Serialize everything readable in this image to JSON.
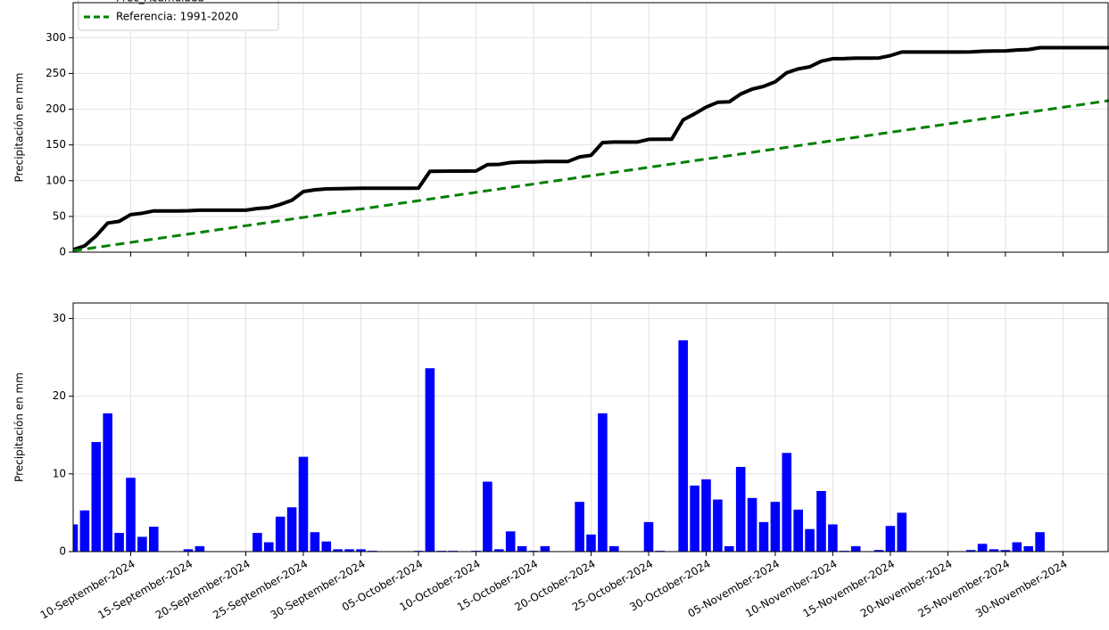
{
  "chart_data": [
    {
      "type": "line",
      "ylabel": "Precipitación en mm",
      "grid": true,
      "legend": "upper left",
      "xlim": [
        "2024-09-05",
        "2024-12-04"
      ],
      "ylim": [
        0,
        349
      ],
      "yticks": [
        0,
        50,
        100,
        150,
        200,
        250,
        300
      ],
      "xticks": [
        "2024-09-10",
        "2024-09-15",
        "2024-09-20",
        "2024-09-25",
        "2024-09-30",
        "2024-10-05",
        "2024-10-10",
        "2024-10-15",
        "2024-10-20",
        "2024-10-25",
        "2024-10-30",
        "2024-11-05",
        "2024-11-10",
        "2024-11-15",
        "2024-11-20",
        "2024-11-25",
        "2024-11-30"
      ],
      "series": [
        {
          "name": "Prec_Acumulada",
          "color": "#000000",
          "dash": false,
          "x": [
            "2024-09-05",
            "2024-09-06",
            "2024-09-07",
            "2024-09-08",
            "2024-09-09",
            "2024-09-10",
            "2024-09-11",
            "2024-09-12",
            "2024-09-13",
            "2024-09-14",
            "2024-09-15",
            "2024-09-16",
            "2024-09-17",
            "2024-09-18",
            "2024-09-19",
            "2024-09-20",
            "2024-09-21",
            "2024-09-22",
            "2024-09-23",
            "2024-09-24",
            "2024-09-25",
            "2024-09-26",
            "2024-09-27",
            "2024-09-28",
            "2024-09-29",
            "2024-09-30",
            "2024-10-01",
            "2024-10-02",
            "2024-10-03",
            "2024-10-04",
            "2024-10-05",
            "2024-10-06",
            "2024-10-07",
            "2024-10-08",
            "2024-10-09",
            "2024-10-10",
            "2024-10-11",
            "2024-10-12",
            "2024-10-13",
            "2024-10-14",
            "2024-10-15",
            "2024-10-16",
            "2024-10-17",
            "2024-10-18",
            "2024-10-19",
            "2024-10-20",
            "2024-10-21",
            "2024-10-22",
            "2024-10-23",
            "2024-10-24",
            "2024-10-25",
            "2024-10-26",
            "2024-10-27",
            "2024-10-28",
            "2024-10-29",
            "2024-10-30",
            "2024-10-31",
            "2024-11-01",
            "2024-11-02",
            "2024-11-03",
            "2024-11-04",
            "2024-11-05",
            "2024-11-06",
            "2024-11-07",
            "2024-11-08",
            "2024-11-09",
            "2024-11-10",
            "2024-11-11",
            "2024-11-12",
            "2024-11-13",
            "2024-11-14",
            "2024-11-15",
            "2024-11-16",
            "2024-11-17",
            "2024-11-18",
            "2024-11-19",
            "2024-11-20",
            "2024-11-21",
            "2024-11-22",
            "2024-11-23",
            "2024-11-24",
            "2024-11-25",
            "2024-11-26",
            "2024-11-27",
            "2024-11-28",
            "2024-11-29",
            "2024-11-30",
            "2024-12-01",
            "2024-12-02",
            "2024-12-03",
            "2024-12-04"
          ],
          "values": [
            3.5,
            8.8,
            22.9,
            40.7,
            43.1,
            52.6,
            54.5,
            57.7,
            57.7,
            57.7,
            58.0,
            58.7,
            58.7,
            58.7,
            58.7,
            58.7,
            61.1,
            62.3,
            66.8,
            72.5,
            84.7,
            87.2,
            88.5,
            88.8,
            89.1,
            89.4,
            89.5,
            89.5,
            89.5,
            89.5,
            89.6,
            113.2,
            113.3,
            113.4,
            113.4,
            113.5,
            122.5,
            122.8,
            125.4,
            126.1,
            126.2,
            126.9,
            126.9,
            126.9,
            133.3,
            135.5,
            153.3,
            154.0,
            154.0,
            154.0,
            157.8,
            157.9,
            157.9,
            185.1,
            193.6,
            202.9,
            209.6,
            210.3,
            221.2,
            228.1,
            231.9,
            238.3,
            251.0,
            256.4,
            259.3,
            267.1,
            270.6,
            270.7,
            271.4,
            271.4,
            271.6,
            274.9,
            279.9,
            279.9,
            279.9,
            279.9,
            279.9,
            279.9,
            280.1,
            281.1,
            281.4,
            281.6,
            282.8,
            283.5,
            286.0,
            286.0,
            286.0,
            286.0,
            286.0,
            286.0,
            286.0
          ]
        },
        {
          "name": "Referencia: 1991-2020",
          "color": "#008000",
          "dash": true,
          "x": [
            "2024-09-05",
            "2024-12-04"
          ],
          "values": [
            2,
            212
          ]
        }
      ]
    },
    {
      "type": "bar",
      "ylabel": "Precipitación en mm",
      "grid": true,
      "color": "#0000ff",
      "xlim": [
        "2024-09-05",
        "2024-12-04"
      ],
      "ylim": [
        0,
        32
      ],
      "yticks": [
        0,
        10,
        20,
        30
      ],
      "xticks": [
        {
          "value": "2024-09-10",
          "label": "10-September-2024"
        },
        {
          "value": "2024-09-15",
          "label": "15-September-2024"
        },
        {
          "value": "2024-09-20",
          "label": "20-September-2024"
        },
        {
          "value": "2024-09-25",
          "label": "25-September-2024"
        },
        {
          "value": "2024-09-30",
          "label": "30-September-2024"
        },
        {
          "value": "2024-10-05",
          "label": "05-October-2024"
        },
        {
          "value": "2024-10-10",
          "label": "10-October-2024"
        },
        {
          "value": "2024-10-15",
          "label": "15-October-2024"
        },
        {
          "value": "2024-10-20",
          "label": "20-October-2024"
        },
        {
          "value": "2024-10-25",
          "label": "25-October-2024"
        },
        {
          "value": "2024-10-30",
          "label": "30-October-2024"
        },
        {
          "value": "2024-11-05",
          "label": "05-November-2024"
        },
        {
          "value": "2024-11-10",
          "label": "10-November-2024"
        },
        {
          "value": "2024-11-15",
          "label": "15-November-2024"
        },
        {
          "value": "2024-11-20",
          "label": "20-November-2024"
        },
        {
          "value": "2024-11-25",
          "label": "25-November-2024"
        },
        {
          "value": "2024-11-30",
          "label": "30-November-2024"
        }
      ],
      "x": [
        "2024-09-05",
        "2024-09-06",
        "2024-09-07",
        "2024-09-08",
        "2024-09-09",
        "2024-09-10",
        "2024-09-11",
        "2024-09-12",
        "2024-09-13",
        "2024-09-14",
        "2024-09-15",
        "2024-09-16",
        "2024-09-17",
        "2024-09-18",
        "2024-09-19",
        "2024-09-20",
        "2024-09-21",
        "2024-09-22",
        "2024-09-23",
        "2024-09-24",
        "2024-09-25",
        "2024-09-26",
        "2024-09-27",
        "2024-09-28",
        "2024-09-29",
        "2024-09-30",
        "2024-10-01",
        "2024-10-02",
        "2024-10-03",
        "2024-10-04",
        "2024-10-05",
        "2024-10-06",
        "2024-10-07",
        "2024-10-08",
        "2024-10-09",
        "2024-10-10",
        "2024-10-11",
        "2024-10-12",
        "2024-10-13",
        "2024-10-14",
        "2024-10-15",
        "2024-10-16",
        "2024-10-17",
        "2024-10-18",
        "2024-10-19",
        "2024-10-20",
        "2024-10-21",
        "2024-10-22",
        "2024-10-23",
        "2024-10-24",
        "2024-10-25",
        "2024-10-26",
        "2024-10-27",
        "2024-10-28",
        "2024-10-29",
        "2024-10-30",
        "2024-10-31",
        "2024-11-01",
        "2024-11-02",
        "2024-11-03",
        "2024-11-04",
        "2024-11-05",
        "2024-11-06",
        "2024-11-07",
        "2024-11-08",
        "2024-11-09",
        "2024-11-10",
        "2024-11-11",
        "2024-11-12",
        "2024-11-13",
        "2024-11-14",
        "2024-11-15",
        "2024-11-16",
        "2024-11-17",
        "2024-11-18",
        "2024-11-19",
        "2024-11-20",
        "2024-11-21",
        "2024-11-22",
        "2024-11-23",
        "2024-11-24",
        "2024-11-25",
        "2024-11-26",
        "2024-11-27",
        "2024-11-28"
      ],
      "values": [
        3.5,
        5.3,
        14.1,
        17.8,
        2.4,
        9.5,
        1.9,
        3.2,
        0,
        0,
        0.3,
        0.7,
        0,
        0,
        0,
        0,
        2.4,
        1.2,
        4.5,
        5.7,
        12.2,
        2.5,
        1.3,
        0.3,
        0.3,
        0.3,
        0.1,
        0,
        0,
        0,
        0.1,
        23.6,
        0.1,
        0.1,
        0,
        0.1,
        9.0,
        0.3,
        2.6,
        0.7,
        0.1,
        0.7,
        0,
        0,
        6.4,
        2.2,
        17.8,
        0.7,
        0,
        0,
        3.8,
        0.1,
        0,
        27.2,
        8.5,
        9.3,
        6.7,
        0.7,
        10.9,
        6.9,
        3.8,
        6.4,
        12.7,
        5.4,
        2.9,
        7.8,
        3.5,
        0.1,
        0.7,
        0,
        0.2,
        3.3,
        5.0,
        0,
        0,
        0,
        0,
        0,
        0.2,
        1.0,
        0.3,
        0.2,
        1.2,
        0.7,
        2.5
      ]
    }
  ]
}
